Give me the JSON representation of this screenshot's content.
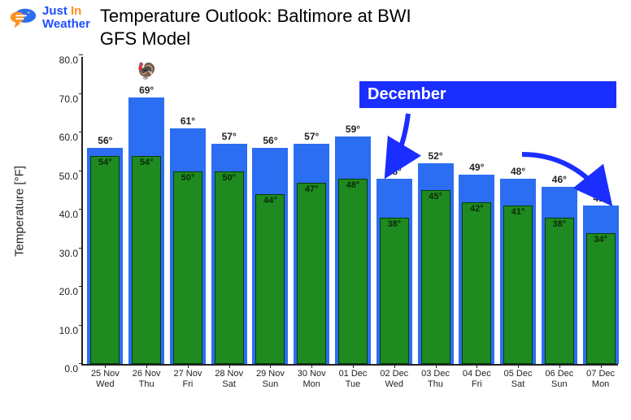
{
  "logo": {
    "line1_a": "Just",
    "line1_b": "In",
    "line2": "Weather"
  },
  "title": "Temperature Outlook: Baltimore at BWI",
  "subtitle": "GFS Model",
  "ylabel": "Temperature [°F]",
  "banner_text": "December",
  "chart": {
    "type": "bar",
    "ylim": [
      0,
      80
    ],
    "ytick_step": 10,
    "high_color": "#2b6ef2",
    "low_color": "#1f8a1f",
    "low_border": "#0a3a0a",
    "banner_bg": "#1a2eff",
    "arrow_color": "#1a2eff",
    "background": "#ffffff",
    "data": [
      {
        "date": "25 Nov",
        "dow": "Wed",
        "high": 56,
        "low": 54
      },
      {
        "date": "26 Nov",
        "dow": "Thu",
        "high": 69,
        "low": 54,
        "icon": "turkey"
      },
      {
        "date": "27 Nov",
        "dow": "Fri",
        "high": 61,
        "low": 50
      },
      {
        "date": "28 Nov",
        "dow": "Sat",
        "high": 57,
        "low": 50
      },
      {
        "date": "29 Nov",
        "dow": "Sun",
        "high": 56,
        "low": 44
      },
      {
        "date": "30 Nov",
        "dow": "Mon",
        "high": 57,
        "low": 47
      },
      {
        "date": "01 Dec",
        "dow": "Tue",
        "high": 59,
        "low": 48
      },
      {
        "date": "02 Dec",
        "dow": "Wed",
        "high": 48,
        "low": 38
      },
      {
        "date": "03 Dec",
        "dow": "Thu",
        "high": 52,
        "low": 45
      },
      {
        "date": "04 Dec",
        "dow": "Fri",
        "high": 49,
        "low": 42
      },
      {
        "date": "05 Dec",
        "dow": "Sat",
        "high": 48,
        "low": 41
      },
      {
        "date": "06 Dec",
        "dow": "Sun",
        "high": 46,
        "low": 38
      },
      {
        "date": "07 Dec",
        "dow": "Mon",
        "high": 41,
        "low": 34
      }
    ]
  }
}
